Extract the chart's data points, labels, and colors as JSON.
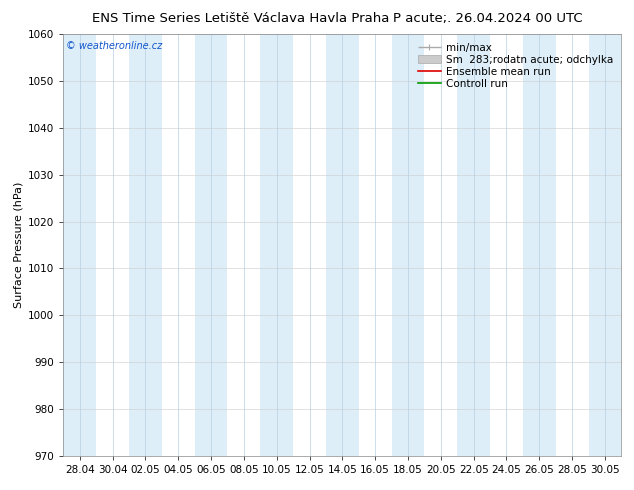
{
  "title_left": "ENS Time Series Letiště Václava Havla Praha",
  "title_right": "P acute;. 26.04.2024 00 UTC",
  "ylabel": "Surface Pressure (hPa)",
  "ylim": [
    970,
    1060
  ],
  "yticks": [
    970,
    980,
    990,
    1000,
    1010,
    1020,
    1030,
    1040,
    1050,
    1060
  ],
  "xtick_labels": [
    "28.04",
    "30.04",
    "02.05",
    "04.05",
    "06.05",
    "08.05",
    "10.05",
    "12.05",
    "14.05",
    "16.05",
    "18.05",
    "20.05",
    "22.05",
    "24.05",
    "26.05",
    "28.05",
    "30.05"
  ],
  "watermark": "© weatheronline.cz",
  "stripe_color": "#ddeef8",
  "stripe_edge_color": "#b8cfe0",
  "background_color": "#ffffff",
  "title_fontsize": 9.5,
  "ylabel_fontsize": 8,
  "tick_fontsize": 7.5,
  "legend_fontsize": 7.5,
  "watermark_color": "#1155cc",
  "legend_min_max_color": "#aaaaaa",
  "legend_sm_color": "#cccccc",
  "legend_ensemble_color": "#dd0000",
  "legend_control_color": "#009900"
}
